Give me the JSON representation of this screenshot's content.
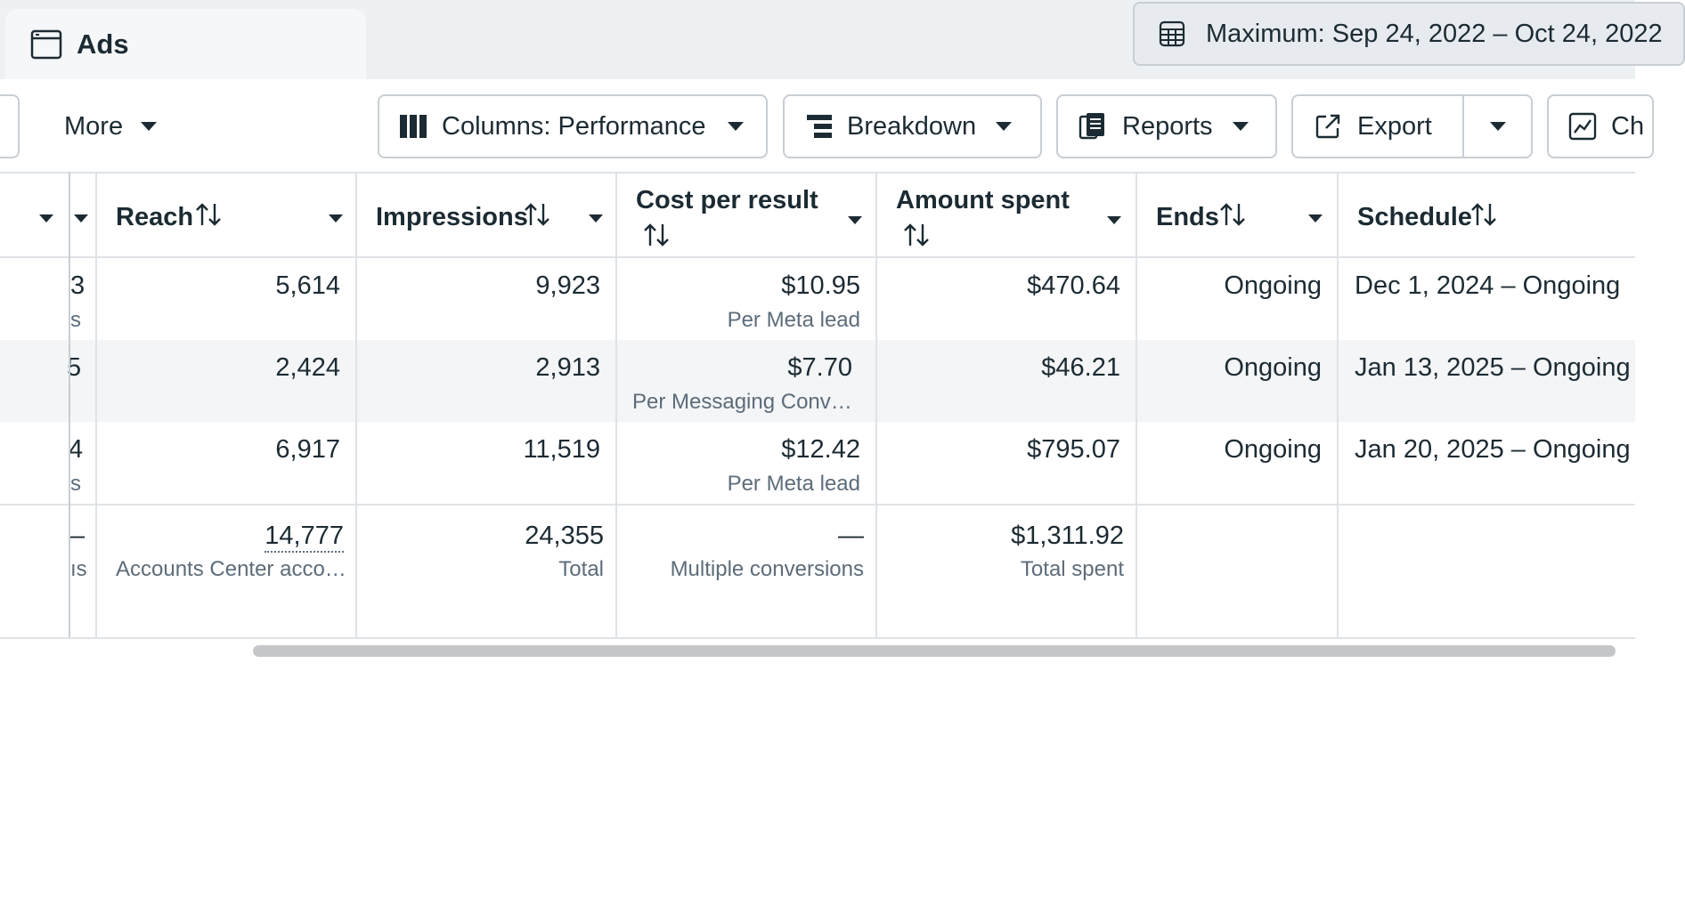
{
  "tab": {
    "label": "Ads",
    "icon": "window-icon"
  },
  "date_range": {
    "label": "Maximum: Sep 24, 2022 – Oct 24, 2022",
    "icon": "calendar-table-icon"
  },
  "toolbar": {
    "more_label": "More",
    "columns_label": "Columns: Performance",
    "breakdown_label": "Breakdown",
    "reports_label": "Reports",
    "export_label": "Export",
    "chart_label": "Ch"
  },
  "columns": {
    "reach": "Reach",
    "impressions": "Impressions",
    "cost_per_result": "Cost per result",
    "amount_spent": "Amount spent",
    "ends": "Ends",
    "schedule": "Schedule"
  },
  "rows": [
    {
      "left_val": "3",
      "left_sub": "s",
      "reach": "5,614",
      "impressions": "9,923",
      "cost": "$10.95",
      "cost_sub": "Per Meta lead",
      "spent": "$470.64",
      "ends": "Ongoing",
      "schedule": "Dec 1, 2024 – Ongoing"
    },
    {
      "left_val": "5",
      "left_sub": "",
      "reach": "2,424",
      "impressions": "2,913",
      "cost": "$7.70",
      "cost_sub": "Per Messaging Conv…",
      "spent": "$46.21",
      "ends": "Ongoing",
      "schedule": "Jan 13, 2025 – Ongoing"
    },
    {
      "left_val": "4",
      "left_sub": "s",
      "reach": "6,917",
      "impressions": "11,519",
      "cost": "$12.42",
      "cost_sub": "Per Meta lead",
      "spent": "$795.07",
      "ends": "Ongoing",
      "schedule": "Jan 20, 2025 – Ongoing"
    }
  ],
  "totals": {
    "left_val": "–",
    "left_sub": "ıs",
    "reach": "14,777",
    "reach_sub": "Accounts Center acco…",
    "impressions": "24,355",
    "impressions_sub": "Total",
    "cost": "—",
    "cost_sub": "Multiple conversions",
    "spent": "$1,311.92",
    "spent_sub": "Total spent"
  }
}
